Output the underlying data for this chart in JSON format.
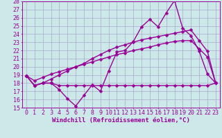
{
  "xlabel": "Windchill (Refroidissement éolien,°C)",
  "x": [
    0,
    1,
    2,
    3,
    4,
    5,
    6,
    7,
    8,
    9,
    10,
    11,
    12,
    13,
    14,
    15,
    16,
    17,
    18,
    19,
    20,
    21,
    22,
    23
  ],
  "line1": [
    18.9,
    17.7,
    18.0,
    18.0,
    17.2,
    16.1,
    15.2,
    16.5,
    17.8,
    17.0,
    19.5,
    21.8,
    22.0,
    23.1,
    24.9,
    25.8,
    24.9,
    26.6,
    28.1,
    24.7,
    23.8,
    21.9,
    19.1,
    18.0
  ],
  "line2": [
    18.9,
    17.7,
    18.0,
    18.0,
    17.7,
    17.7,
    17.7,
    17.7,
    17.7,
    17.7,
    17.7,
    17.7,
    17.7,
    17.7,
    17.7,
    17.7,
    17.7,
    17.7,
    17.7,
    17.7,
    17.7,
    17.7,
    17.7,
    18.0
  ],
  "line3": [
    18.9,
    17.7,
    18.0,
    18.5,
    19.0,
    19.5,
    20.0,
    20.4,
    21.0,
    21.5,
    22.0,
    22.4,
    22.7,
    23.0,
    23.3,
    23.5,
    23.7,
    23.9,
    24.1,
    24.3,
    24.5,
    23.2,
    21.9,
    18.0
  ],
  "line4": [
    18.9,
    18.3,
    18.7,
    19.1,
    19.4,
    19.7,
    20.0,
    20.3,
    20.6,
    20.9,
    21.2,
    21.5,
    21.7,
    22.0,
    22.2,
    22.4,
    22.7,
    22.9,
    23.1,
    23.2,
    23.2,
    22.2,
    21.2,
    18.0
  ],
  "color": "#990099",
  "bg_color": "#cce8e8",
  "grid_color": "#aaaacc",
  "ylim": [
    15,
    28
  ],
  "xlim_min": -0.5,
  "xlim_max": 23.5,
  "yticks": [
    15,
    16,
    17,
    18,
    19,
    20,
    21,
    22,
    23,
    24,
    25,
    26,
    27,
    28
  ],
  "xticks": [
    0,
    1,
    2,
    3,
    4,
    5,
    6,
    7,
    8,
    9,
    10,
    11,
    12,
    13,
    14,
    15,
    16,
    17,
    18,
    19,
    20,
    21,
    22,
    23
  ],
  "xlabel_fontsize": 6.5,
  "tick_fontsize": 6.0,
  "line_width": 1.0,
  "marker_size": 2.5
}
